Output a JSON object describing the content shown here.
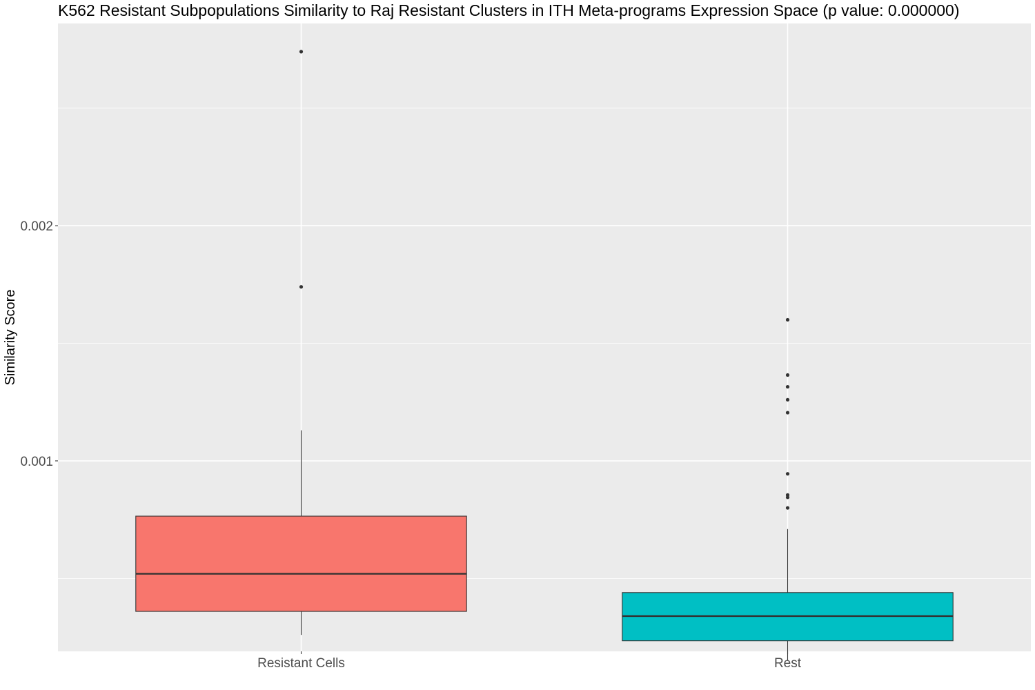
{
  "chart_data": {
    "type": "boxplot",
    "title": "K562 Resistant Subpopulations Similarity to Raj Resistant Clusters in ITH Meta-programs Expression Space (p value: 0.000000)",
    "xlabel": "",
    "ylabel": "Similarity Score",
    "ylim": [
      0.00019,
      0.00286
    ],
    "y_ticks": [
      0.001,
      0.002
    ],
    "y_tick_labels": [
      "0.001",
      "0.002"
    ],
    "y_minor_ticks": [
      0.0005,
      0.0015,
      0.0025
    ],
    "grid": true,
    "legend": "none",
    "panel_background": "#ebebeb",
    "grid_color": "#ffffff",
    "categories": [
      "Resistant Cells",
      "Rest"
    ],
    "boxes": [
      {
        "category": "Resistant Cells",
        "color": "#f8766d",
        "whisker_low": 0.00026,
        "q1": 0.00036,
        "median": 0.00052,
        "q3": 0.000765,
        "whisker_high": 0.00113,
        "outliers": [
          0.00274,
          0.00174
        ]
      },
      {
        "category": "Rest",
        "color": "#00bfc4",
        "whisker_low": 0.00015,
        "q1": 0.000235,
        "median": 0.00034,
        "q3": 0.00044,
        "whisker_high": 0.00071,
        "outliers": [
          0.0016,
          0.001365,
          0.001315,
          0.00126,
          0.001205,
          0.000945,
          0.000855,
          0.000845,
          0.0008
        ]
      }
    ]
  }
}
